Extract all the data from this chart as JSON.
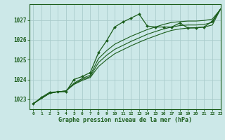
{
  "title": "Graphe pression niveau de la mer (hPa)",
  "bg_color": "#cce8e8",
  "grid_color": "#aacccc",
  "line_color": "#1a5c1a",
  "marker_color": "#1a5c1a",
  "xlim": [
    -0.5,
    23
  ],
  "ylim": [
    1022.5,
    1027.8
  ],
  "yticks": [
    1023,
    1024,
    1025,
    1026,
    1027
  ],
  "xticks": [
    0,
    1,
    2,
    3,
    4,
    5,
    6,
    7,
    8,
    9,
    10,
    11,
    12,
    13,
    14,
    15,
    16,
    17,
    18,
    19,
    20,
    21,
    22,
    23
  ],
  "series_main": [
    1022.78,
    1023.1,
    1023.35,
    1023.38,
    1023.38,
    1024.0,
    1024.15,
    1024.35,
    1025.35,
    1025.95,
    1026.65,
    1026.9,
    1027.1,
    1027.3,
    1026.7,
    1026.65,
    1026.65,
    1026.65,
    1026.85,
    1026.6,
    1026.6,
    1026.65,
    1026.95,
    1027.55
  ],
  "series_smooth": [
    [
      1022.78,
      1023.05,
      1023.3,
      1023.38,
      1023.42,
      1023.75,
      1023.95,
      1024.1,
      1024.65,
      1025.0,
      1025.3,
      1025.5,
      1025.7,
      1025.88,
      1026.05,
      1026.2,
      1026.35,
      1026.48,
      1026.55,
      1026.6,
      1026.62,
      1026.65,
      1026.75,
      1027.55
    ],
    [
      1022.78,
      1023.05,
      1023.3,
      1023.38,
      1023.42,
      1023.78,
      1024.0,
      1024.15,
      1024.85,
      1025.22,
      1025.52,
      1025.72,
      1025.92,
      1026.1,
      1026.28,
      1026.42,
      1026.55,
      1026.65,
      1026.72,
      1026.75,
      1026.75,
      1026.78,
      1026.88,
      1027.55
    ],
    [
      1022.78,
      1023.05,
      1023.3,
      1023.38,
      1023.42,
      1023.82,
      1024.05,
      1024.22,
      1025.05,
      1025.45,
      1025.78,
      1025.98,
      1026.18,
      1026.35,
      1026.52,
      1026.65,
      1026.78,
      1026.88,
      1026.92,
      1026.95,
      1026.95,
      1026.98,
      1027.05,
      1027.55
    ]
  ]
}
